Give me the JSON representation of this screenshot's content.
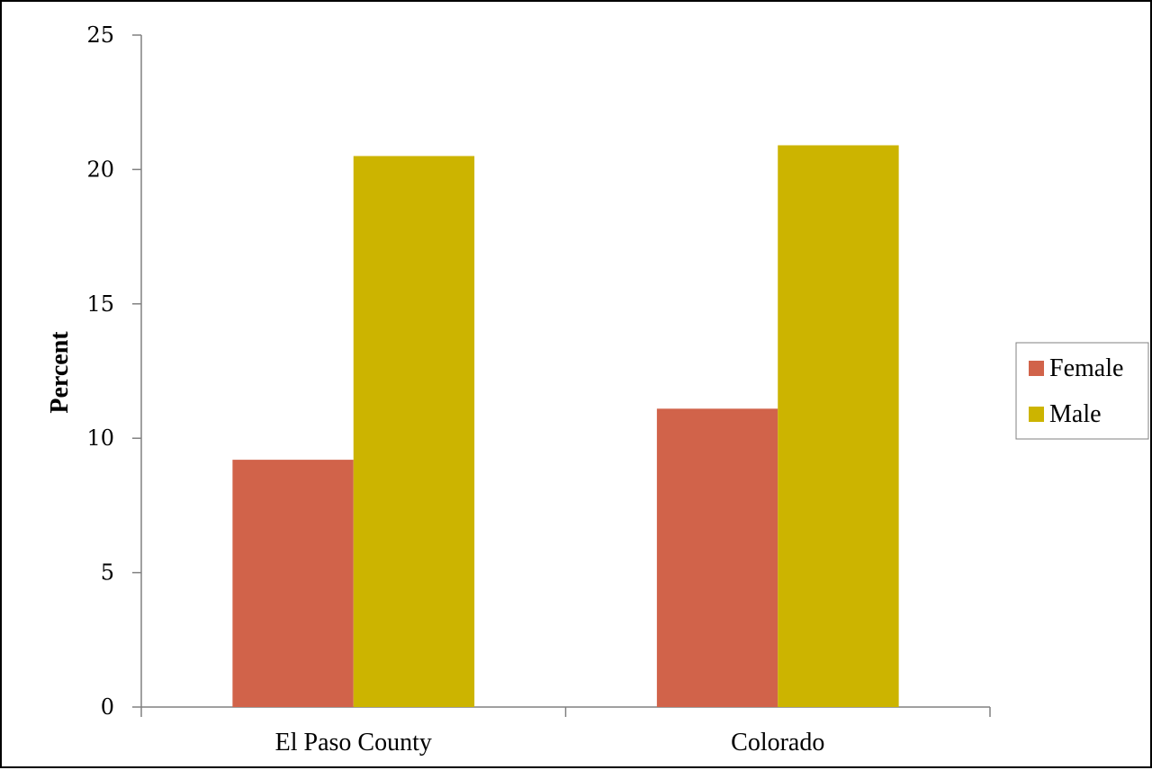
{
  "chart_data": {
    "type": "bar",
    "title": "",
    "xlabel": "",
    "ylabel": "Percent",
    "ylim": [
      0,
      25
    ],
    "yticks": [
      "0",
      "5",
      "10",
      "15",
      "20",
      "25"
    ],
    "categories": [
      "El Paso County",
      "Colorado"
    ],
    "series": [
      {
        "name": "Female",
        "color": "#d1634a",
        "values": [
          9.2,
          11.1
        ]
      },
      {
        "name": "Male",
        "color": "#ccb400",
        "values": [
          20.5,
          20.9
        ]
      }
    ],
    "legend_position": "right",
    "grid": false
  }
}
